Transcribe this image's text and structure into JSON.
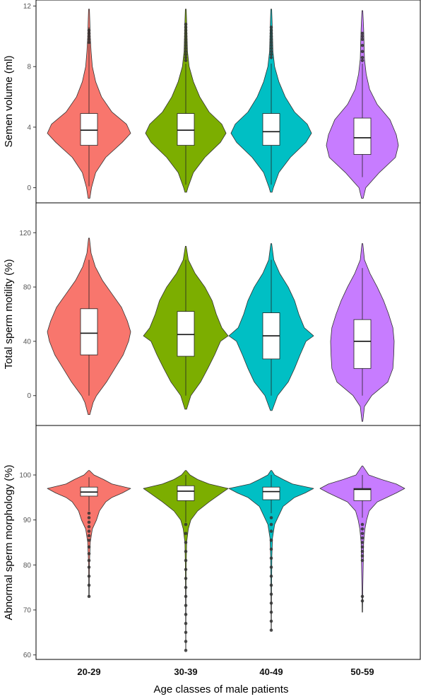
{
  "chart_data": {
    "type": "violin",
    "categories": [
      "20-29",
      "30-39",
      "40-49",
      "50-59"
    ],
    "xlabel": "Age classes of male patients",
    "colors": [
      "#f8766d",
      "#7cae00",
      "#00bfc4",
      "#c77cff"
    ],
    "panels": [
      {
        "ylabel": "Semen volume (ml)",
        "ylim": [
          -1,
          12.4
        ],
        "yticks": [
          0,
          4,
          8,
          12
        ],
        "groups": [
          {
            "category": "20-29",
            "min": -0.7,
            "max": 11.8,
            "q1": 2.8,
            "median": 3.8,
            "q3": 4.9,
            "whisker_low": 0.1,
            "whisker_high": 10.6,
            "density": [
              [
                -0.7,
                0.02
              ],
              [
                0,
                0.06
              ],
              [
                1,
                0.16
              ],
              [
                2,
                0.4
              ],
              [
                3,
                0.8
              ],
              [
                3.6,
                1.0
              ],
              [
                4.2,
                0.9
              ],
              [
                5,
                0.55
              ],
              [
                6,
                0.3
              ],
              [
                7,
                0.16
              ],
              [
                8,
                0.08
              ],
              [
                9,
                0.05
              ],
              [
                10,
                0.03
              ],
              [
                11,
                0.02
              ],
              [
                11.8,
                0.01
              ]
            ],
            "outliers": [
              9.6,
              9.8,
              10.0,
              10.2,
              10.4
            ]
          },
          {
            "category": "30-39",
            "min": -0.3,
            "max": 11.8,
            "q1": 2.8,
            "median": 3.8,
            "q3": 4.9,
            "whisker_low": 0.2,
            "whisker_high": 8.2,
            "density": [
              [
                -0.3,
                0.02
              ],
              [
                0,
                0.05
              ],
              [
                1,
                0.18
              ],
              [
                2,
                0.45
              ],
              [
                3,
                0.82
              ],
              [
                3.6,
                0.95
              ],
              [
                4.2,
                0.85
              ],
              [
                5,
                0.55
              ],
              [
                6,
                0.33
              ],
              [
                7,
                0.18
              ],
              [
                8,
                0.08
              ],
              [
                9,
                0.04
              ],
              [
                10,
                0.03
              ],
              [
                11,
                0.02
              ],
              [
                11.8,
                0.01
              ]
            ],
            "outliers": [
              8.4,
              8.6,
              8.8,
              9.0,
              9.2,
              9.4,
              9.6,
              9.8,
              10.0,
              10.2,
              10.4,
              10.6,
              10.8
            ]
          },
          {
            "category": "40-49",
            "min": -0.3,
            "max": 11.8,
            "q1": 2.8,
            "median": 3.7,
            "q3": 4.9,
            "whisker_low": 0.2,
            "whisker_high": 8.2,
            "density": [
              [
                -0.3,
                0.02
              ],
              [
                0,
                0.05
              ],
              [
                1,
                0.18
              ],
              [
                2,
                0.45
              ],
              [
                3,
                0.82
              ],
              [
                3.6,
                0.95
              ],
              [
                4.2,
                0.85
              ],
              [
                5,
                0.55
              ],
              [
                6,
                0.33
              ],
              [
                7,
                0.18
              ],
              [
                8,
                0.08
              ],
              [
                9,
                0.04
              ],
              [
                10,
                0.03
              ],
              [
                11,
                0.02
              ],
              [
                11.8,
                0.01
              ]
            ],
            "outliers": [
              8.6,
              8.8,
              9.0,
              9.2,
              9.4,
              9.6,
              9.8,
              10.0,
              10.2,
              10.4,
              10.6
            ]
          },
          {
            "category": "50-59",
            "min": -0.7,
            "max": 11.7,
            "q1": 2.2,
            "median": 3.3,
            "q3": 4.6,
            "whisker_low": 0.7,
            "whisker_high": 8.2,
            "density": [
              [
                -0.7,
                0.02
              ],
              [
                0,
                0.08
              ],
              [
                1,
                0.4
              ],
              [
                2,
                0.78
              ],
              [
                2.8,
                0.85
              ],
              [
                3.5,
                0.8
              ],
              [
                4.5,
                0.65
              ],
              [
                5.5,
                0.35
              ],
              [
                6.5,
                0.17
              ],
              [
                7.5,
                0.09
              ],
              [
                8.5,
                0.05
              ],
              [
                9.5,
                0.04
              ],
              [
                10.5,
                0.03
              ],
              [
                11.7,
                0.01
              ]
            ],
            "outliers": [
              8.4,
              8.6,
              9.0,
              9.4,
              9.8,
              10.0,
              10.2
            ]
          }
        ]
      },
      {
        "ylabel": "Total sperm motility (%)",
        "ylim": [
          -22,
          142
        ],
        "yticks": [
          0,
          40,
          80,
          120
        ],
        "groups": [
          {
            "category": "20-29",
            "min": -14,
            "max": 116,
            "q1": 30,
            "median": 46,
            "q3": 64,
            "whisker_low": 0,
            "whisker_high": 100,
            "density": [
              [
                -14,
                0.02
              ],
              [
                -5,
                0.1
              ],
              [
                0,
                0.18
              ],
              [
                10,
                0.42
              ],
              [
                20,
                0.62
              ],
              [
                30,
                0.82
              ],
              [
                40,
                0.95
              ],
              [
                47,
                1.0
              ],
              [
                55,
                0.92
              ],
              [
                65,
                0.78
              ],
              [
                75,
                0.55
              ],
              [
                85,
                0.32
              ],
              [
                95,
                0.15
              ],
              [
                105,
                0.05
              ],
              [
                116,
                0.01
              ]
            ],
            "outliers": []
          },
          {
            "category": "30-39",
            "min": -10,
            "max": 110,
            "q1": 29,
            "median": 45,
            "q3": 62,
            "whisker_low": 0,
            "whisker_high": 100,
            "density": [
              [
                -10,
                0.02
              ],
              [
                0,
                0.12
              ],
              [
                10,
                0.35
              ],
              [
                20,
                0.52
              ],
              [
                30,
                0.68
              ],
              [
                40,
                0.82
              ],
              [
                44,
                1.0
              ],
              [
                50,
                0.85
              ],
              [
                60,
                0.72
              ],
              [
                70,
                0.62
              ],
              [
                80,
                0.45
              ],
              [
                90,
                0.22
              ],
              [
                100,
                0.06
              ],
              [
                110,
                0.01
              ]
            ],
            "outliers": []
          },
          {
            "category": "40-49",
            "min": -11,
            "max": 112,
            "q1": 27,
            "median": 44,
            "q3": 61,
            "whisker_low": 0,
            "whisker_high": 100,
            "density": [
              [
                -11,
                0.02
              ],
              [
                0,
                0.15
              ],
              [
                10,
                0.4
              ],
              [
                20,
                0.55
              ],
              [
                30,
                0.68
              ],
              [
                40,
                0.82
              ],
              [
                44,
                1.0
              ],
              [
                50,
                0.78
              ],
              [
                60,
                0.65
              ],
              [
                70,
                0.55
              ],
              [
                80,
                0.4
              ],
              [
                90,
                0.2
              ],
              [
                100,
                0.06
              ],
              [
                112,
                0.01
              ]
            ],
            "outliers": []
          },
          {
            "category": "50-59",
            "min": -19,
            "max": 112,
            "q1": 20,
            "median": 40,
            "q3": 56,
            "whisker_low": 0,
            "whisker_high": 94,
            "density": [
              [
                -19,
                0.01
              ],
              [
                -8,
                0.05
              ],
              [
                0,
                0.22
              ],
              [
                10,
                0.6
              ],
              [
                20,
                0.72
              ],
              [
                30,
                0.74
              ],
              [
                40,
                0.75
              ],
              [
                50,
                0.72
              ],
              [
                60,
                0.62
              ],
              [
                70,
                0.5
              ],
              [
                80,
                0.35
              ],
              [
                90,
                0.18
              ],
              [
                100,
                0.05
              ],
              [
                112,
                0.01
              ]
            ],
            "outliers": []
          }
        ]
      },
      {
        "ylabel": "Abnormal sperm morphology (%)",
        "ylim": [
          59,
          111
        ],
        "yticks": [
          60,
          70,
          80,
          90,
          100
        ],
        "groups": [
          {
            "category": "20-29",
            "min": 73,
            "max": 101,
            "q1": 95.3,
            "median": 96.2,
            "q3": 97.3,
            "whisker_low": 92,
            "whisker_high": 99.5,
            "density": [
              [
                73,
                0.005
              ],
              [
                80,
                0.01
              ],
              [
                85,
                0.03
              ],
              [
                88,
                0.08
              ],
              [
                90,
                0.18
              ],
              [
                92,
                0.25
              ],
              [
                94,
                0.4
              ],
              [
                95,
                0.55
              ],
              [
                96,
                0.8
              ],
              [
                97,
                1.0
              ],
              [
                98,
                0.55
              ],
              [
                99,
                0.35
              ],
              [
                100,
                0.12
              ],
              [
                101,
                0.01
              ]
            ],
            "outliers": [
              73.0,
              75.5,
              77.5,
              79.5,
              81.0,
              82.5,
              84.0,
              85.5,
              86.5,
              87.5,
              88.5,
              89.5,
              90.5,
              91.5
            ]
          },
          {
            "category": "30-39",
            "min": 61,
            "max": 101,
            "q1": 94.3,
            "median": 96.4,
            "q3": 97.6,
            "whisker_low": 89.5,
            "whisker_high": 100,
            "density": [
              [
                61,
                0.002
              ],
              [
                70,
                0.005
              ],
              [
                80,
                0.01
              ],
              [
                85,
                0.02
              ],
              [
                88,
                0.06
              ],
              [
                90,
                0.12
              ],
              [
                92,
                0.28
              ],
              [
                94,
                0.55
              ],
              [
                96,
                0.85
              ],
              [
                97,
                1.0
              ],
              [
                98,
                0.55
              ],
              [
                99,
                0.28
              ],
              [
                100,
                0.1
              ],
              [
                101,
                0.01
              ]
            ],
            "outliers": [
              61.0,
              63.0,
              65.0,
              67.0,
              69.0,
              71.0,
              73.0,
              75.0,
              77.0,
              79.0,
              81.0,
              83.0,
              85.0,
              87.0,
              89.0
            ]
          },
          {
            "category": "40-49",
            "min": 65.5,
            "max": 101,
            "q1": 94.5,
            "median": 96.3,
            "q3": 97.3,
            "whisker_low": 91.5,
            "whisker_high": 100,
            "density": [
              [
                65.5,
                0.003
              ],
              [
                75,
                0.008
              ],
              [
                82,
                0.015
              ],
              [
                86,
                0.03
              ],
              [
                89,
                0.08
              ],
              [
                91,
                0.18
              ],
              [
                93,
                0.28
              ],
              [
                95,
                0.55
              ],
              [
                96,
                0.8
              ],
              [
                97,
                1.0
              ],
              [
                98,
                0.5
              ],
              [
                99,
                0.28
              ],
              [
                100,
                0.08
              ],
              [
                101,
                0.01
              ]
            ],
            "outliers": [
              65.5,
              67.5,
              69.5,
              71.5,
              73.5,
              75.5,
              77.5,
              79.5,
              81.5,
              83.5,
              85.5,
              87.5,
              89.0,
              90.5
            ]
          },
          {
            "category": "50-59",
            "min": 69.5,
            "max": 102,
            "q1": 94.3,
            "median": 96.8,
            "q3": 97.0,
            "whisker_low": 90.5,
            "whisker_high": 100,
            "density": [
              [
                69.5,
                0.005
              ],
              [
                75,
                0.01
              ],
              [
                80,
                0.02
              ],
              [
                85,
                0.03
              ],
              [
                88,
                0.06
              ],
              [
                90,
                0.1
              ],
              [
                92,
                0.16
              ],
              [
                94,
                0.35
              ],
              [
                96,
                0.8
              ],
              [
                97,
                1.0
              ],
              [
                98,
                0.8
              ],
              [
                99,
                0.45
              ],
              [
                100,
                0.15
              ],
              [
                102,
                0.01
              ]
            ],
            "outliers": [
              72.0,
              73.0,
              81.0,
              82.0,
              83.0,
              84.0,
              85.0,
              86.0,
              87.0,
              88.0,
              89.0
            ]
          }
        ]
      }
    ]
  }
}
